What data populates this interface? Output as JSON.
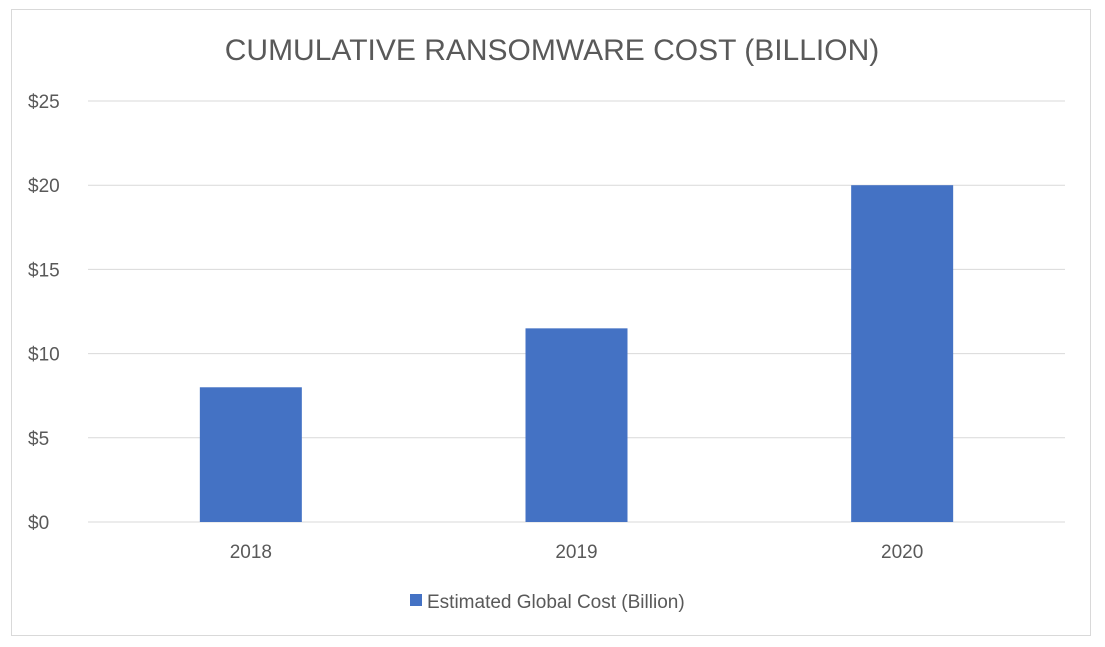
{
  "chart_data": {
    "type": "bar",
    "title": "CUMULATIVE RANSOMWARE COST (BILLION)",
    "categories": [
      "2018",
      "2019",
      "2020"
    ],
    "series": [
      {
        "name": "Estimated Global Cost (Billion)",
        "values": [
          8,
          11.5,
          20
        ],
        "color": "#4472c4"
      }
    ],
    "ylim": [
      0,
      25
    ],
    "y_ticks": [
      0,
      5,
      10,
      15,
      20,
      25
    ],
    "y_tick_labels": [
      "$0",
      "$5",
      "$10",
      "$15",
      "$20",
      "$25"
    ],
    "xlabel": "",
    "ylabel": "",
    "grid": true,
    "legend_position": "bottom",
    "colors": {
      "bar": "#4472c4",
      "grid": "#d9d9d9",
      "text": "#595959"
    }
  }
}
